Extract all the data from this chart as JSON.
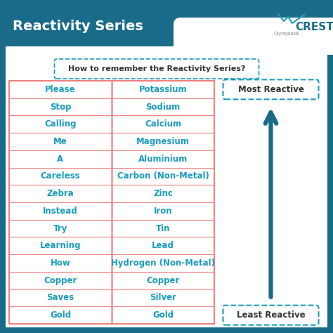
{
  "title": "Reactivity Series",
  "subtitle": "How to remember the Reactivity Series?",
  "outer_border_color": "#1a6b8a",
  "header_bg": "#1a6b8a",
  "title_color": "#ffffff",
  "body_bg": "#ffffff",
  "table_border_color": "#f08080",
  "text_color_cyan": "#1a9bbf",
  "text_color_dark": "#333333",
  "arrow_color": "#1a6b8a",
  "most_reactive_label": "Most Reactive",
  "least_reactive_label": "Least Reactive",
  "mnemonic": [
    "Please",
    "Stop",
    "Calling",
    "Me",
    "A",
    "Careless",
    "Zebra",
    "Instead",
    "Try",
    "Learning",
    "How",
    "Copper",
    "Saves",
    "Gold"
  ],
  "elements": [
    "Potassium",
    "Sodium",
    "Calcium",
    "Magnesium",
    "Aluminium",
    "Carbon (Non-Metal)",
    "Zinc",
    "Iron",
    "Tin",
    "Lead",
    "Hydrogen (Non-Metal)",
    "Copper",
    "Silver",
    "Gold"
  ],
  "crest_text": "CREST",
  "olympiads_text": "Olympiads"
}
